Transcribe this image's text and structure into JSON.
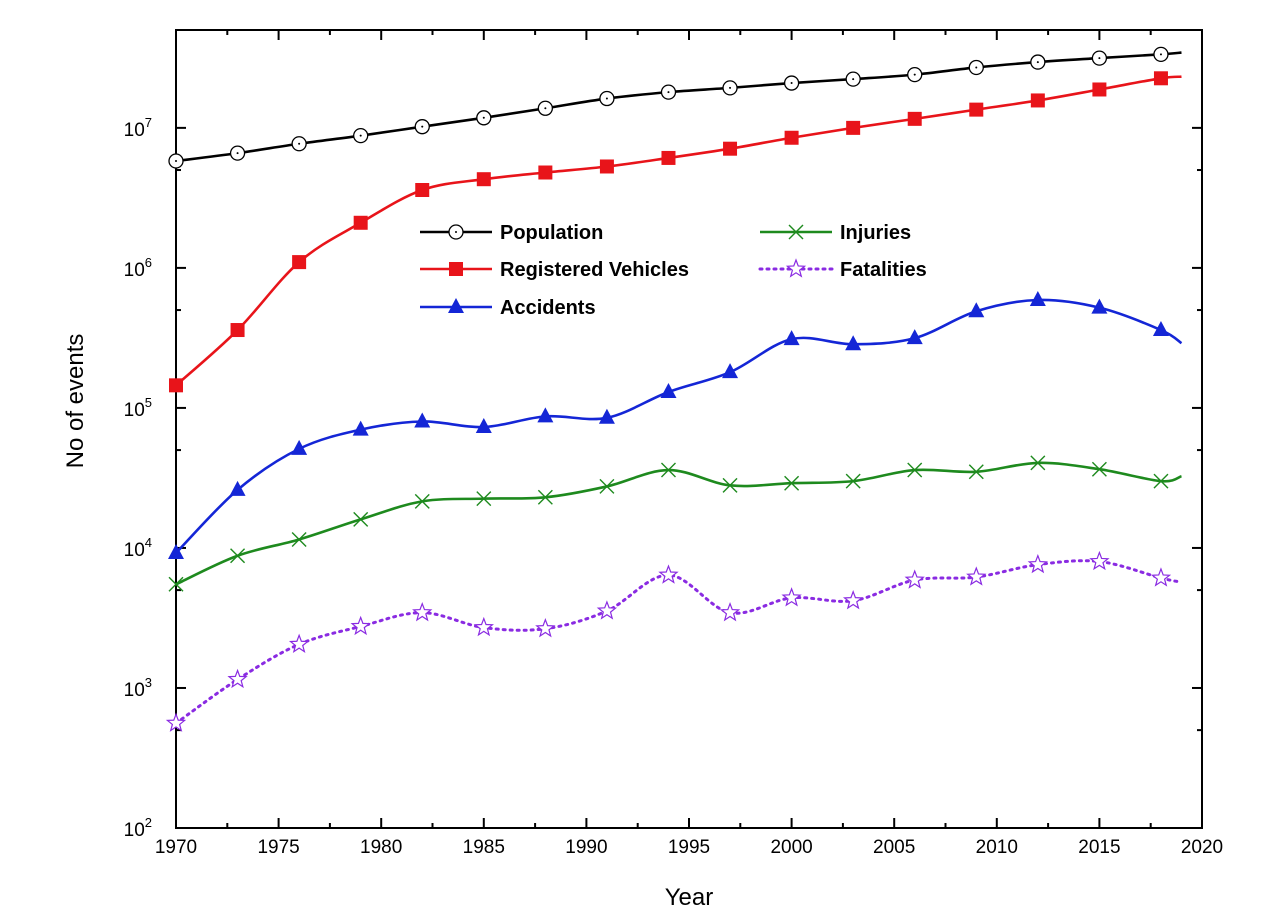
{
  "chart_data": {
    "type": "line",
    "xlabel": "Year",
    "ylabel": "No of events",
    "xlim": [
      1970,
      2020
    ],
    "ylim": [
      100,
      50000000
    ],
    "yscale": "log",
    "xticks": [
      1970,
      1975,
      1980,
      1985,
      1990,
      1995,
      2000,
      2005,
      2010,
      2015,
      2020
    ],
    "xtick_labels": [
      "1970",
      "1975",
      "1980",
      "1985",
      "1990",
      "1995",
      "2000",
      "2005",
      "2010",
      "2015",
      "2020"
    ],
    "yticks": [
      100,
      1000,
      10000,
      100000,
      1000000,
      10000000
    ],
    "ytick_labels": [
      {
        "base": "10",
        "exp": "2"
      },
      {
        "base": "10",
        "exp": "3"
      },
      {
        "base": "10",
        "exp": "4"
      },
      {
        "base": "10",
        "exp": "5"
      },
      {
        "base": "10",
        "exp": "6"
      },
      {
        "base": "10",
        "exp": "7"
      }
    ],
    "grid": false,
    "legend_position": "upper-center",
    "series": [
      {
        "name": "Population",
        "color": "#000000",
        "marker": "open-circle",
        "line": "solid",
        "x": [
          1970,
          1973,
          1976,
          1979,
          1982,
          1985,
          1988,
          1991,
          1994,
          1997,
          2000,
          2003,
          2006,
          2009,
          2012,
          2015,
          2018,
          2019
        ],
        "y": [
          5800000,
          6600000,
          7700000,
          8800000,
          10200000,
          11800000,
          13800000,
          16200000,
          18000000,
          19300000,
          20900000,
          22300000,
          24000000,
          27000000,
          29500000,
          31500000,
          33500000,
          34500000
        ]
      },
      {
        "name": "Registered Vehicles",
        "color": "#e8141a",
        "marker": "filled-square",
        "line": "solid",
        "x": [
          1970,
          1973,
          1976,
          1979,
          1982,
          1985,
          1988,
          1991,
          1994,
          1997,
          2000,
          2003,
          2006,
          2009,
          2012,
          2015,
          2018,
          2019
        ],
        "y": [
          145000,
          360000,
          1100000,
          2100000,
          3600000,
          4300000,
          4800000,
          5300000,
          6100000,
          7100000,
          8500000,
          10000000,
          11600000,
          13500000,
          15700000,
          18800000,
          22600000,
          23200000
        ]
      },
      {
        "name": "Accidents",
        "color": "#1426d6",
        "marker": "filled-triangle",
        "line": "solid",
        "x": [
          1970,
          1973,
          1976,
          1979,
          1982,
          1985,
          1988,
          1991,
          1994,
          1997,
          2000,
          2003,
          2006,
          2009,
          2012,
          2015,
          2018,
          2019
        ],
        "y": [
          9200,
          26000,
          51000,
          70000,
          80000,
          73000,
          87000,
          85000,
          130000,
          180000,
          310000,
          285000,
          315000,
          490000,
          590000,
          520000,
          360000,
          290000
        ]
      },
      {
        "name": "Injuries",
        "color": "#1e8a1e",
        "marker": "cross",
        "line": "solid",
        "x": [
          1970,
          1973,
          1976,
          1979,
          1982,
          1985,
          1988,
          1991,
          1994,
          1997,
          2000,
          2003,
          2006,
          2009,
          2012,
          2015,
          2018,
          2019
        ],
        "y": [
          5500,
          8800,
          11500,
          16000,
          21500,
          22500,
          23000,
          27500,
          36000,
          28000,
          29000,
          30000,
          36000,
          35000,
          40500,
          36500,
          30000,
          32500
        ]
      },
      {
        "name": "Fatalities",
        "color": "#8a2be2",
        "marker": "open-star",
        "line": "dotted",
        "x": [
          1970,
          1973,
          1976,
          1979,
          1982,
          1985,
          1988,
          1991,
          1994,
          1997,
          2000,
          2003,
          2006,
          2009,
          2012,
          2015,
          2018,
          2019
        ],
        "y": [
          560,
          1150,
          2050,
          2750,
          3450,
          2700,
          2650,
          3550,
          6400,
          3450,
          4400,
          4200,
          5900,
          6200,
          7600,
          8000,
          6100,
          5700
        ]
      }
    ]
  }
}
